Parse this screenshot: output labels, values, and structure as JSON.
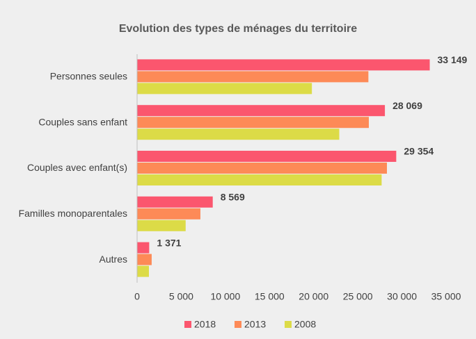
{
  "chart_data": {
    "type": "hbar",
    "title": "Evolution des types de ménages du territoire",
    "categories": [
      "Personnes seules",
      "Couples sans enfant",
      "Couples avec enfant(s)",
      "Familles monoparentales",
      "Autres"
    ],
    "series": [
      {
        "name": "2018",
        "color": "#fb566e",
        "values": [
          33149,
          28069,
          29354,
          8569,
          1371
        ],
        "value_labels": [
          "33 149",
          "28 069",
          "29 354",
          "8 569",
          "1 371"
        ]
      },
      {
        "name": "2013",
        "color": "#fd8a57",
        "values": [
          26200,
          26250,
          28300,
          7170,
          1650
        ]
      },
      {
        "name": "2008",
        "color": "#dcdb47",
        "values": [
          19800,
          22900,
          27700,
          5500,
          1340
        ]
      }
    ],
    "xlim": [
      0,
      35000
    ],
    "xticks": [
      0,
      {
        "value": 5000,
        "label": "5 000"
      },
      {
        "value": 10000,
        "label": "10 000"
      },
      {
        "value": 15000,
        "label": "15 000"
      },
      {
        "value": 20000,
        "label": "20 000"
      },
      {
        "value": 25000,
        "label": "25 000"
      },
      {
        "value": 30000,
        "label": "30 000"
      },
      {
        "value": 35000,
        "label": "35 000"
      }
    ],
    "legend": "bottom"
  }
}
